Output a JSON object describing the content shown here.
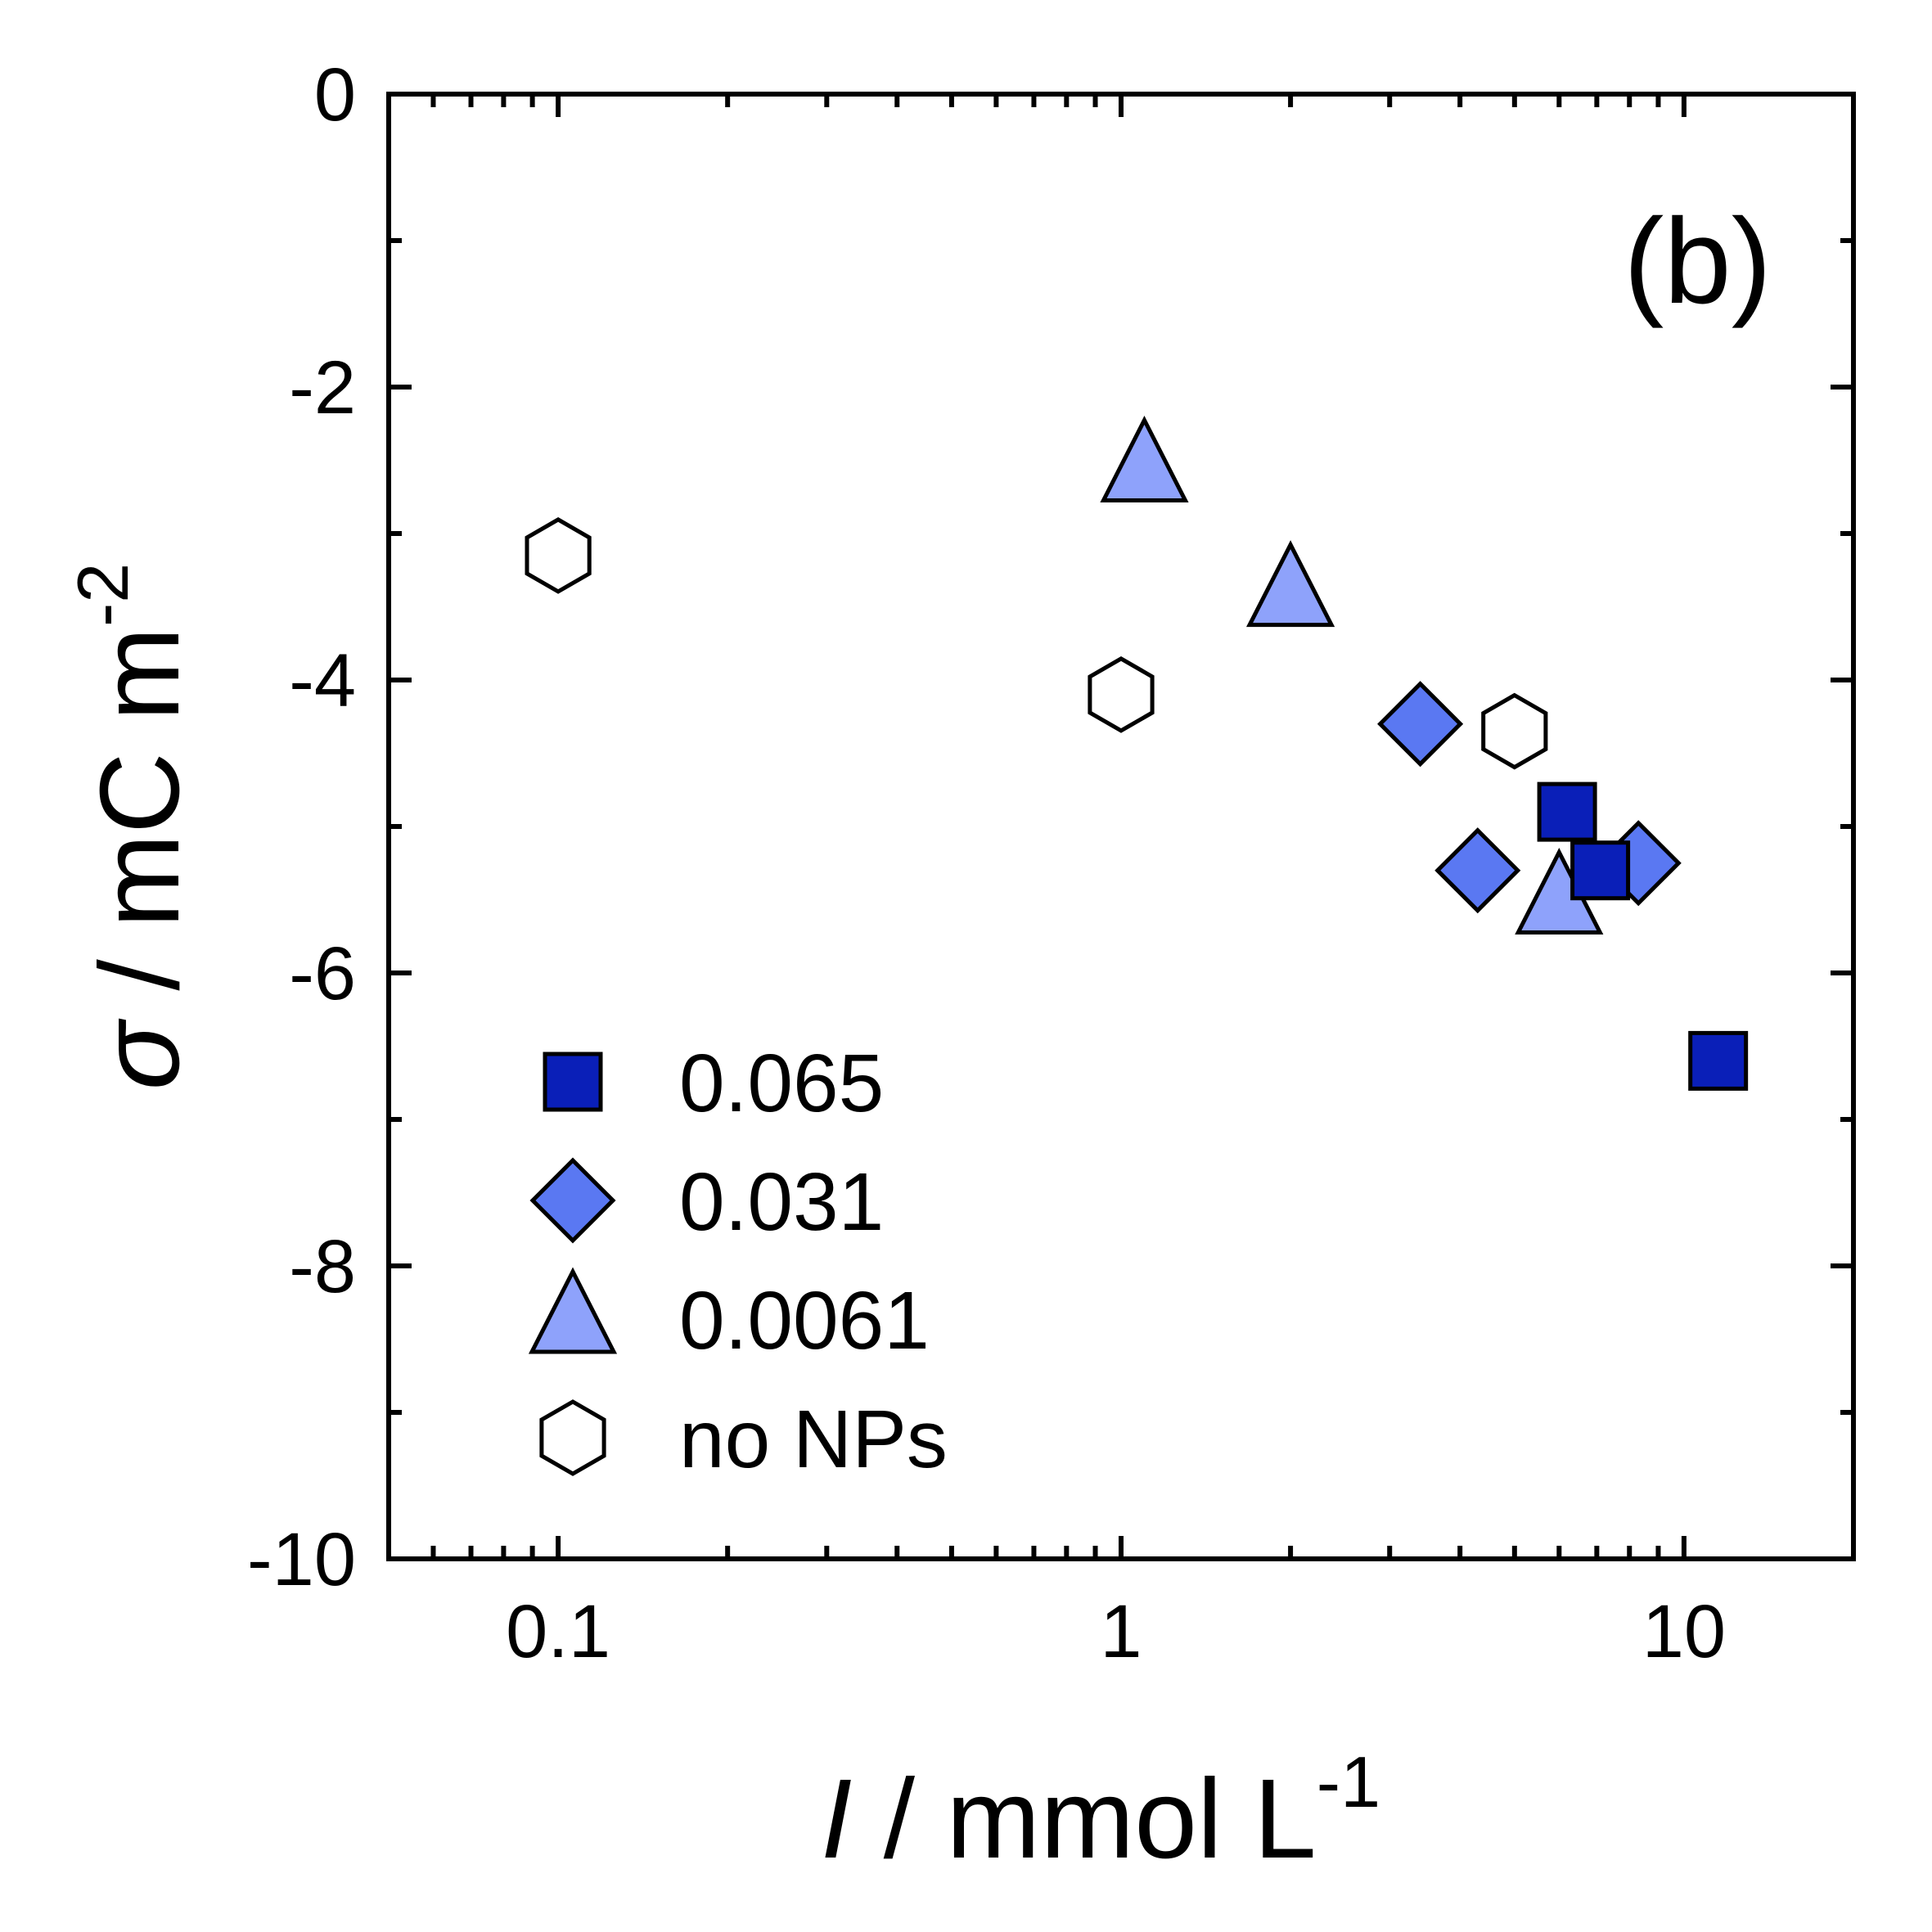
{
  "chart_data": {
    "type": "scatter",
    "panel_label": "(b)",
    "xscale": "log",
    "xlim": [
      0.05,
      20
    ],
    "ylim": [
      -10,
      0
    ],
    "x_ticks": [
      "0.1",
      "1",
      "10"
    ],
    "x_tick_values": [
      0.1,
      1,
      10
    ],
    "y_ticks": [
      "0",
      "-2",
      "-4",
      "-6",
      "-8",
      "-10"
    ],
    "y_tick_values": [
      0,
      -2,
      -4,
      -6,
      -8,
      -10
    ],
    "xlabel": {
      "italic": "I",
      "text": " / mmol L",
      "sup": "-1"
    },
    "ylabel": {
      "italic": "σ",
      "text": " / mC m",
      "sup": "-2"
    },
    "legend_position": "lower-left",
    "series": [
      {
        "name": "0.065",
        "marker": "square",
        "color": "#0a1fb8",
        "points": [
          [
            6.2,
            -4.9
          ],
          [
            7.1,
            -5.3
          ],
          [
            11.5,
            -6.6
          ]
        ]
      },
      {
        "name": "0.031",
        "marker": "diamond",
        "color": "#5a78f2",
        "points": [
          [
            3.4,
            -4.3
          ],
          [
            4.3,
            -5.3
          ],
          [
            8.3,
            -5.25
          ]
        ]
      },
      {
        "name": "0.0061",
        "marker": "triangle",
        "color": "#8ea2fb",
        "points": [
          [
            1.1,
            -2.55
          ],
          [
            2.0,
            -3.4
          ],
          [
            6.0,
            -5.5
          ]
        ]
      },
      {
        "name": "no NPs",
        "marker": "hexagon",
        "color": "#ffffff",
        "points": [
          [
            0.1,
            -3.15
          ],
          [
            1.0,
            -4.1
          ],
          [
            5.0,
            -4.35
          ]
        ]
      }
    ]
  }
}
